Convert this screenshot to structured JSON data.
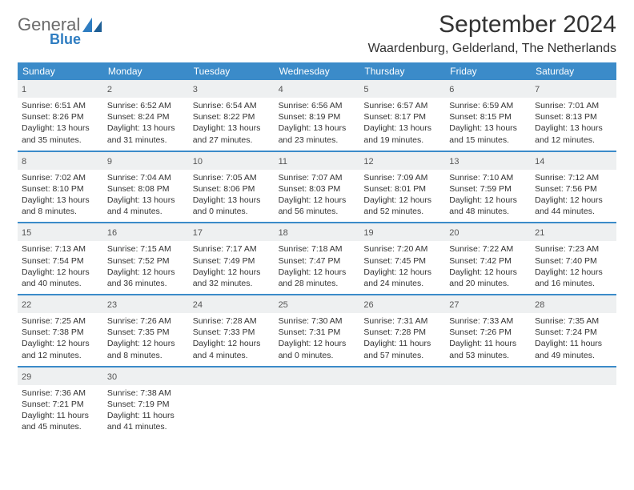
{
  "brand": {
    "general": "General",
    "blue": "Blue"
  },
  "title": "September 2024",
  "location": "Waardenburg, Gelderland, The Netherlands",
  "colors": {
    "header_bar": "#3b8bc9",
    "daynum_bg": "#eef0f1",
    "text": "#333333",
    "logo_gray": "#6b6b6b",
    "logo_blue": "#2f7dc1"
  },
  "weekdays": [
    "Sunday",
    "Monday",
    "Tuesday",
    "Wednesday",
    "Thursday",
    "Friday",
    "Saturday"
  ],
  "days": [
    {
      "n": "1",
      "sr": "6:51 AM",
      "ss": "8:26 PM",
      "dl": "13 hours and 35 minutes."
    },
    {
      "n": "2",
      "sr": "6:52 AM",
      "ss": "8:24 PM",
      "dl": "13 hours and 31 minutes."
    },
    {
      "n": "3",
      "sr": "6:54 AM",
      "ss": "8:22 PM",
      "dl": "13 hours and 27 minutes."
    },
    {
      "n": "4",
      "sr": "6:56 AM",
      "ss": "8:19 PM",
      "dl": "13 hours and 23 minutes."
    },
    {
      "n": "5",
      "sr": "6:57 AM",
      "ss": "8:17 PM",
      "dl": "13 hours and 19 minutes."
    },
    {
      "n": "6",
      "sr": "6:59 AM",
      "ss": "8:15 PM",
      "dl": "13 hours and 15 minutes."
    },
    {
      "n": "7",
      "sr": "7:01 AM",
      "ss": "8:13 PM",
      "dl": "13 hours and 12 minutes."
    },
    {
      "n": "8",
      "sr": "7:02 AM",
      "ss": "8:10 PM",
      "dl": "13 hours and 8 minutes."
    },
    {
      "n": "9",
      "sr": "7:04 AM",
      "ss": "8:08 PM",
      "dl": "13 hours and 4 minutes."
    },
    {
      "n": "10",
      "sr": "7:05 AM",
      "ss": "8:06 PM",
      "dl": "13 hours and 0 minutes."
    },
    {
      "n": "11",
      "sr": "7:07 AM",
      "ss": "8:03 PM",
      "dl": "12 hours and 56 minutes."
    },
    {
      "n": "12",
      "sr": "7:09 AM",
      "ss": "8:01 PM",
      "dl": "12 hours and 52 minutes."
    },
    {
      "n": "13",
      "sr": "7:10 AM",
      "ss": "7:59 PM",
      "dl": "12 hours and 48 minutes."
    },
    {
      "n": "14",
      "sr": "7:12 AM",
      "ss": "7:56 PM",
      "dl": "12 hours and 44 minutes."
    },
    {
      "n": "15",
      "sr": "7:13 AM",
      "ss": "7:54 PM",
      "dl": "12 hours and 40 minutes."
    },
    {
      "n": "16",
      "sr": "7:15 AM",
      "ss": "7:52 PM",
      "dl": "12 hours and 36 minutes."
    },
    {
      "n": "17",
      "sr": "7:17 AM",
      "ss": "7:49 PM",
      "dl": "12 hours and 32 minutes."
    },
    {
      "n": "18",
      "sr": "7:18 AM",
      "ss": "7:47 PM",
      "dl": "12 hours and 28 minutes."
    },
    {
      "n": "19",
      "sr": "7:20 AM",
      "ss": "7:45 PM",
      "dl": "12 hours and 24 minutes."
    },
    {
      "n": "20",
      "sr": "7:22 AM",
      "ss": "7:42 PM",
      "dl": "12 hours and 20 minutes."
    },
    {
      "n": "21",
      "sr": "7:23 AM",
      "ss": "7:40 PM",
      "dl": "12 hours and 16 minutes."
    },
    {
      "n": "22",
      "sr": "7:25 AM",
      "ss": "7:38 PM",
      "dl": "12 hours and 12 minutes."
    },
    {
      "n": "23",
      "sr": "7:26 AM",
      "ss": "7:35 PM",
      "dl": "12 hours and 8 minutes."
    },
    {
      "n": "24",
      "sr": "7:28 AM",
      "ss": "7:33 PM",
      "dl": "12 hours and 4 minutes."
    },
    {
      "n": "25",
      "sr": "7:30 AM",
      "ss": "7:31 PM",
      "dl": "12 hours and 0 minutes."
    },
    {
      "n": "26",
      "sr": "7:31 AM",
      "ss": "7:28 PM",
      "dl": "11 hours and 57 minutes."
    },
    {
      "n": "27",
      "sr": "7:33 AM",
      "ss": "7:26 PM",
      "dl": "11 hours and 53 minutes."
    },
    {
      "n": "28",
      "sr": "7:35 AM",
      "ss": "7:24 PM",
      "dl": "11 hours and 49 minutes."
    },
    {
      "n": "29",
      "sr": "7:36 AM",
      "ss": "7:21 PM",
      "dl": "11 hours and 45 minutes."
    },
    {
      "n": "30",
      "sr": "7:38 AM",
      "ss": "7:19 PM",
      "dl": "11 hours and 41 minutes."
    }
  ],
  "labels": {
    "sunrise": "Sunrise:",
    "sunset": "Sunset:",
    "daylight": "Daylight:"
  },
  "layout": {
    "first_day_offset": 0,
    "total_cells": 35
  }
}
